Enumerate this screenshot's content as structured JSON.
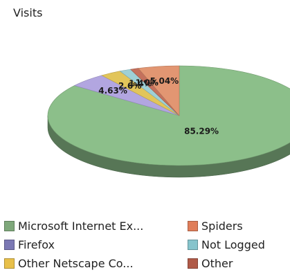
{
  "chart_data": {
    "type": "pie",
    "title": "Visits",
    "slices": [
      {
        "label": "Microsoft Internet Ex...",
        "value": 85.29,
        "data_label": "85.29%",
        "color": "#8cbf8a"
      },
      {
        "label": "Firefox",
        "value": 4.63,
        "data_label": "4.63%",
        "color": "#b2a6e0"
      },
      {
        "label": "Other Netscape Co...",
        "value": 2.6,
        "data_label": "2.6%",
        "color": "#e2c55a"
      },
      {
        "label": "Not Logged",
        "value": 1.4,
        "data_label": "1.4%",
        "color": "#9ed0d6"
      },
      {
        "label": "Other",
        "value": 1.0,
        "data_label": "1.0%",
        "color": "#c4705c"
      },
      {
        "label": "Spiders",
        "value": 5.04,
        "data_label": "5.04%",
        "color": "#e29672"
      }
    ],
    "legend_position": "bottom",
    "legend": [
      {
        "label": "Microsoft Internet Ex...",
        "color": "#7fa87b"
      },
      {
        "label": "Spiders",
        "color": "#e07e5a"
      },
      {
        "label": "Firefox",
        "color": "#7b78b4"
      },
      {
        "label": "Not Logged",
        "color": "#86c4cc"
      },
      {
        "label": "Other Netscape Co...",
        "color": "#e8c04a"
      },
      {
        "label": "Other",
        "color": "#b05a48"
      }
    ]
  }
}
